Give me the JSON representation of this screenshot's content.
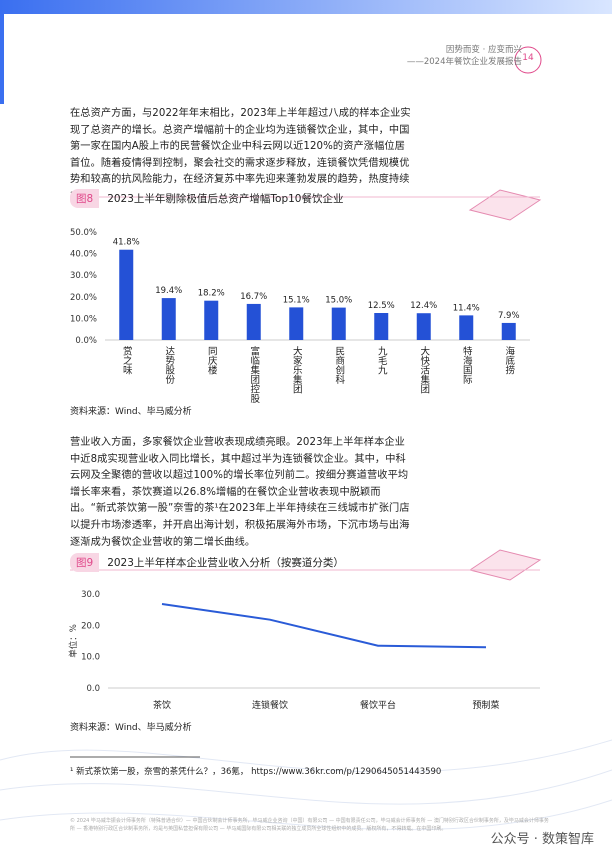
{
  "header": {
    "title": "因势而变 · 应变而兴",
    "subtitle": "——2024年餐饮企业发展报告",
    "page": "14"
  },
  "paragraphs": [
    "在总资产方面，与2022年年末相比，2023年上半年超过八成的样本企业实现了总资产的增长。总资产增幅前十的企业均为连锁餐饮企业，其中，中国第一家在国内A股上市的民营餐饮企业中科云网以近120%的资产涨幅位居首位。随着疫情得到控制，聚会社交的需求逐步释放，连锁餐饮凭借规模优势和较高的抗风险能力，在经济复苏中率先迎来蓬勃发展的趋势，热度持续升温。",
    "营业收入方面，多家餐饮企业营收表现成绩亮眼。2023年上半年样本企业中近8成实现营业收入同比增长，其中超过半为连锁餐饮企业。其中，中科云网及全聚德的营收以超过100%的增长率位列前二。按细分赛道营收平均增长率来看，茶饮赛道以26.8%增幅的在餐饮企业营收表现中脱颖而出。“新式茶饮第一股”奈雪的茶¹在2023年上半年持续在三线城市扩张门店以提升市场渗透率，并开启出海计划，积极拓展海外市场，下沉市场与出海逐渐成为餐饮企业营收的第二增长曲线。"
  ],
  "chart_data": [
    {
      "type": "bar",
      "figure_label": "图8",
      "title": "2023上半年剔除极值后总资产增幅Top10餐饮企业",
      "source": "资料来源：Wind、毕马威分析",
      "categories": [
        "赏之味",
        "达势股份",
        "同庆楼",
        "富临集团控股",
        "大家乐集团",
        "民商创科",
        "九毛九",
        "大快活集团",
        "特海国际",
        "海底捞"
      ],
      "values": [
        41.8,
        19.4,
        18.2,
        16.7,
        15.1,
        15.0,
        12.5,
        12.4,
        11.4,
        7.9
      ],
      "value_labels": [
        "41.8%",
        "19.4%",
        "18.2%",
        "16.7%",
        "15.1%",
        "15.0%",
        "12.5%",
        "12.4%",
        "11.4%",
        "7.9%"
      ],
      "color": "#2451d6",
      "ylim": [
        0,
        50
      ],
      "yticks": [
        {
          "value": 0,
          "label": "0.0%"
        },
        {
          "value": 10,
          "label": "10.0%"
        },
        {
          "value": 20,
          "label": "20.0%"
        },
        {
          "value": 30,
          "label": "30.0%"
        },
        {
          "value": 40,
          "label": "40.0%"
        },
        {
          "value": 50,
          "label": "50.0%"
        }
      ],
      "grid": false
    },
    {
      "type": "line",
      "figure_label": "图9",
      "title": "2023上半年样本企业营业收入分析（按赛道分类）",
      "source": "资料来源：Wind、毕马威分析",
      "y_label": "单位：%",
      "categories": [
        "茶饮",
        "连锁餐饮",
        "餐饮平台",
        "预制菜"
      ],
      "values": [
        26.8,
        21.8,
        13.5,
        13.0
      ],
      "color": "#2a5bd7",
      "ylim": [
        0,
        30
      ],
      "yticks": [
        {
          "value": 0,
          "label": "0.0"
        },
        {
          "value": 10,
          "label": "10.0"
        },
        {
          "value": 20,
          "label": "20.0"
        },
        {
          "value": 30,
          "label": "30.0"
        }
      ],
      "grid": false
    }
  ],
  "footnote": "¹ 新式茶饮第一股，奈雪的茶凭什么？，36氪，    https://www.36kr.com/p/1290645051443590",
  "footer": "© 2024 毕马威华振会计师事务所（特殊普通合伙）— 中国合伙制会计师事务所，毕马威企业咨询（中国）有限公司 — 中国有限责任公司，毕马威会计师事务所 — 澳门特别行政区合伙制事务所，及毕马威会计师事务所 — 香港特别行政区合伙制事务所，均是与英国私营担保有限公司 — 毕马威国际有限公司相关联的独立成员所全球性组织中的成员。版权所有，不得转载。在中国印刷。",
  "watermark": "公众号 · 数策智库"
}
